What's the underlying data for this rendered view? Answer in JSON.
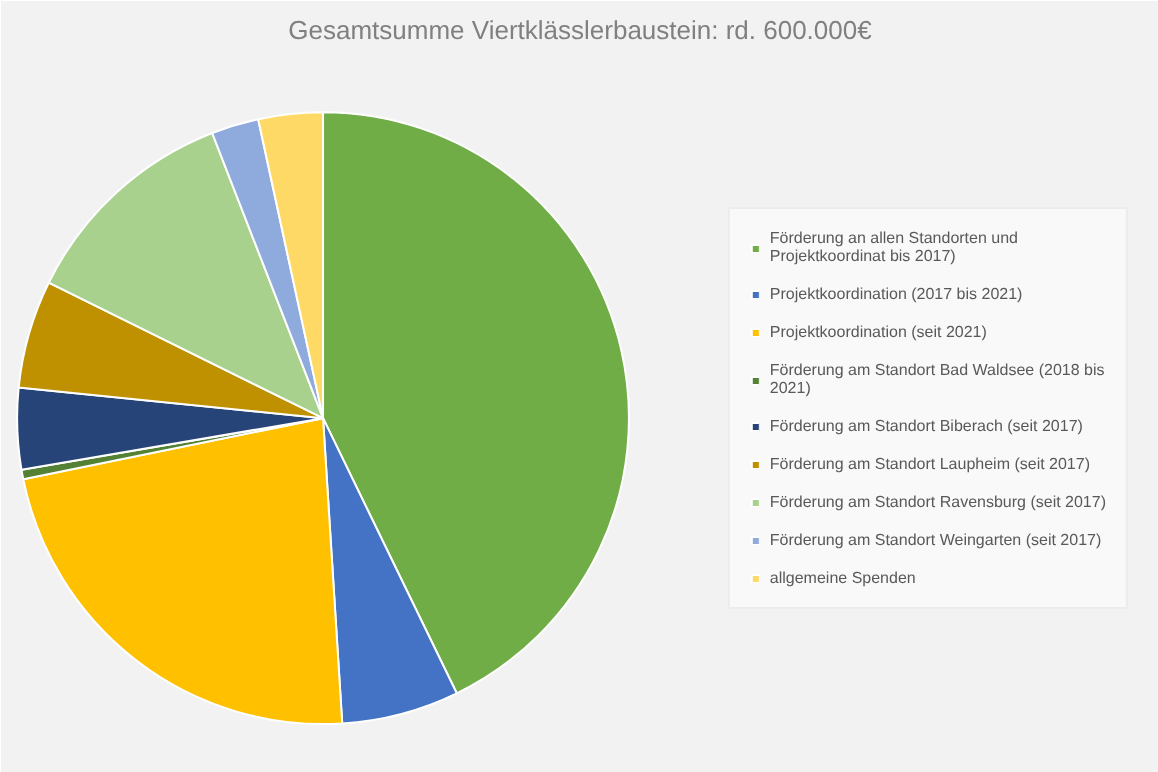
{
  "chart_data": {
    "type": "pie",
    "title": "Gesamtsumme Viertklässlerbaustein: rd. 600.000€",
    "categories": [
      "Förderung an allen Standorten und Projektkoordinat bis 2017)",
      "Projektkoordination (2017 bis 2021)",
      "Projektkoordination (seit 2021)",
      "Förderung am Standort Bad Waldsee (2018 bis 2021)",
      "Förderung am Standort Biberach (seit 2017)",
      "Förderung am Standort Laupheim (seit 2017)",
      "Förderung am Standort Ravensburg (seit 2017)",
      "Förderung am Standort Weingarten (seit 2017)",
      "allgemeine Spenden"
    ],
    "values": [
      42.8,
      6.2,
      22.8,
      0.5,
      4.3,
      5.7,
      11.8,
      2.5,
      3.4
    ],
    "colors": [
      "#70ad47",
      "#4472c4",
      "#ffc000",
      "#548235",
      "#264478",
      "#bf9000",
      "#a9d18e",
      "#8faadc",
      "#ffd966"
    ],
    "legend": "right"
  }
}
